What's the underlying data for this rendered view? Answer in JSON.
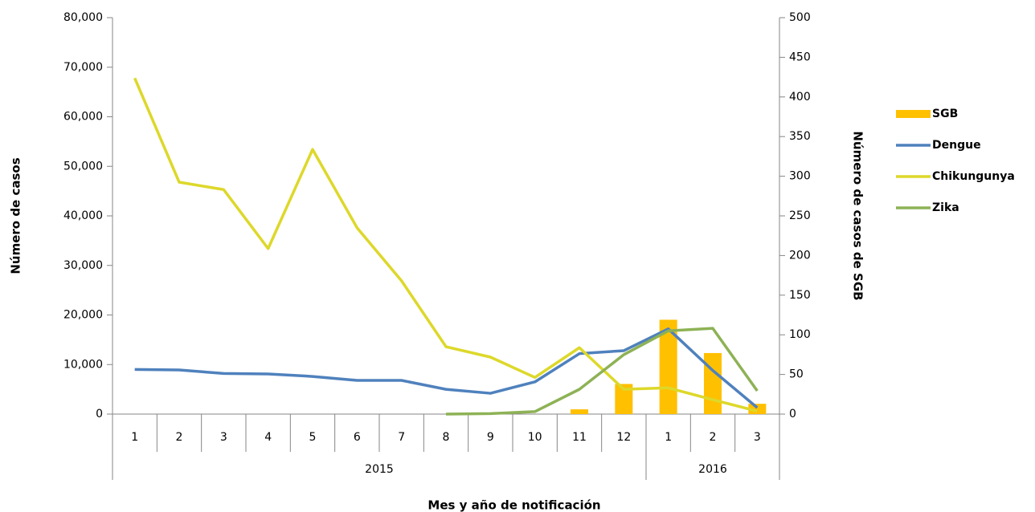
{
  "chart_data": {
    "type": "bar-line",
    "x_label": "Mes y año de notificación",
    "y_label": "Número de casos",
    "y2_label": "Número de casos de SGB",
    "categories": [
      "1",
      "2",
      "3",
      "4",
      "5",
      "6",
      "7",
      "8",
      "9",
      "10",
      "11",
      "12",
      "1",
      "2",
      "3"
    ],
    "groups": [
      {
        "label": "2015",
        "count": 12
      },
      {
        "label": "2016",
        "count": 3
      }
    ],
    "ylim": [
      0,
      80000
    ],
    "yticks": [
      0,
      {
        "value": 10000,
        "label": "10,000"
      },
      {
        "value": 20000,
        "label": "20,000"
      },
      {
        "value": 30000,
        "label": "30,000"
      },
      {
        "value": 40000,
        "label": "40,000"
      },
      {
        "value": 50000,
        "label": "50,000"
      },
      {
        "value": 60000,
        "label": "60,000"
      },
      {
        "value": 70000,
        "label": "70,000"
      },
      {
        "value": 80000,
        "label": "80,000"
      }
    ],
    "y2lim": [
      0,
      500
    ],
    "y2ticks": [
      0,
      50,
      100,
      150,
      200,
      250,
      300,
      350,
      400,
      450,
      500
    ],
    "series": [
      {
        "name": "SGB",
        "kind": "bar",
        "axis": "y2",
        "color": "#FFC000",
        "values": [
          null,
          null,
          null,
          null,
          null,
          null,
          null,
          null,
          null,
          null,
          6,
          38,
          119,
          77,
          13
        ]
      },
      {
        "name": "Dengue",
        "kind": "line",
        "color": "#4F81BD",
        "values": [
          9000,
          8900,
          8200,
          8100,
          7600,
          6800,
          6800,
          5000,
          4200,
          6500,
          12200,
          12800,
          17200,
          8800,
          1300
        ]
      },
      {
        "name": "Chikungunya",
        "kind": "line",
        "color": "#DDD82A",
        "values": [
          67800,
          46800,
          45300,
          33400,
          53400,
          37600,
          26900,
          13600,
          11500,
          7400,
          13400,
          5000,
          5300,
          2900,
          600
        ]
      },
      {
        "name": "Zika",
        "kind": "line",
        "color": "#8DB255",
        "values": [
          null,
          null,
          null,
          null,
          null,
          null,
          null,
          0,
          100,
          500,
          5000,
          12000,
          16800,
          17300,
          4700
        ]
      }
    ]
  }
}
